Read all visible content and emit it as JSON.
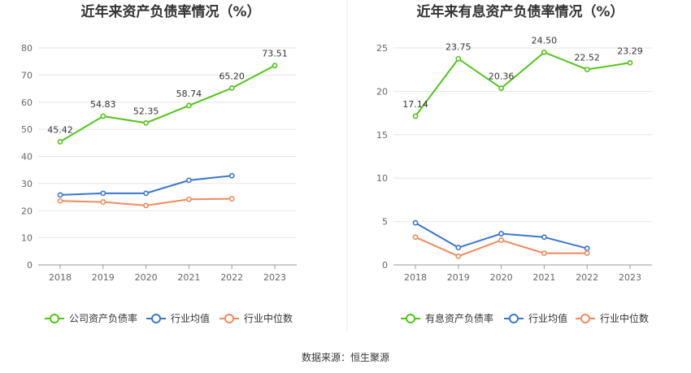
{
  "source": "数据来源：恒生聚源",
  "chart_data": [
    {
      "type": "line",
      "title": "近年来资产负债率情况（%）",
      "categories": [
        "2018",
        "2019",
        "2020",
        "2021",
        "2022",
        "2023"
      ],
      "ylim": [
        0,
        80
      ],
      "yticks": [
        0,
        10,
        20,
        30,
        40,
        50,
        60,
        70,
        80
      ],
      "grid": true,
      "legend_position": "bottom",
      "series": [
        {
          "name": "公司资产负债率",
          "color": "#52c41a",
          "values": [
            45.42,
            54.83,
            52.35,
            58.74,
            65.2,
            73.51
          ],
          "labels": [
            "45.42",
            "54.83",
            "52.35",
            "58.74",
            "65.20",
            "73.51"
          ]
        },
        {
          "name": "行业均值",
          "color": "#3a75d0",
          "values": [
            25.8,
            26.4,
            26.4,
            31.2,
            32.9,
            null
          ]
        },
        {
          "name": "行业中位数",
          "color": "#f08a5d",
          "values": [
            23.6,
            23.2,
            21.9,
            24.2,
            24.4,
            null
          ]
        }
      ]
    },
    {
      "type": "line",
      "title": "近年来有息资产负债率情况（%）",
      "categories": [
        "2018",
        "2019",
        "2020",
        "2021",
        "2022",
        "2023"
      ],
      "ylim": [
        0,
        25
      ],
      "yticks": [
        0,
        5,
        10,
        15,
        20,
        25
      ],
      "grid": true,
      "legend_position": "bottom",
      "series": [
        {
          "name": "有息资产负债率",
          "color": "#52c41a",
          "values": [
            17.14,
            23.75,
            20.36,
            24.5,
            22.52,
            23.29
          ],
          "labels": [
            "17.14",
            "23.75",
            "20.36",
            "24.50",
            "22.52",
            "23.29"
          ]
        },
        {
          "name": "行业均值",
          "color": "#3a75d0",
          "values": [
            4.85,
            2.0,
            3.6,
            3.2,
            1.9,
            null
          ]
        },
        {
          "name": "行业中位数",
          "color": "#f08a5d",
          "values": [
            3.2,
            1.0,
            2.85,
            1.35,
            1.35,
            null
          ]
        }
      ]
    }
  ]
}
